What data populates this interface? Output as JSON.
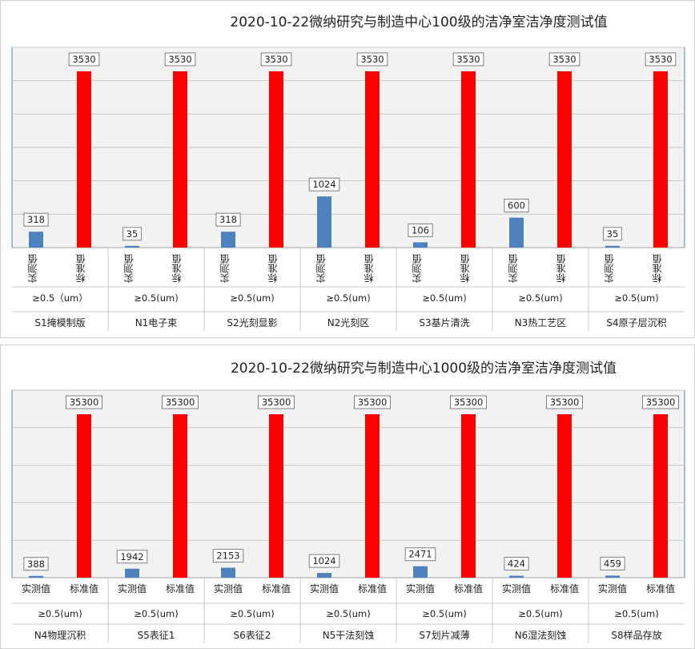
{
  "chart_data": [
    {
      "type": "bar",
      "title": "2020-10-22微纳研究与制造中心100级的洁净室洁净度测试值",
      "series_labels": [
        "实测值",
        "标准值"
      ],
      "colors": {
        "measured": "#4f81bd",
        "standard": "#ff0000"
      },
      "ylim": [
        0,
        3530
      ],
      "groups": [
        {
          "name": "S1掩模制版",
          "size_label": "≥0.5（um）",
          "measured": 318,
          "standard": 3530
        },
        {
          "name": "N1电子束",
          "size_label": "≥0.5(um)",
          "measured": 35,
          "standard": 3530
        },
        {
          "name": "S2光刻显影",
          "size_label": "≥0.5(um)",
          "measured": 318,
          "standard": 3530
        },
        {
          "name": "N2光刻区",
          "size_label": "≥0.5(um)",
          "measured": 1024,
          "standard": 3530
        },
        {
          "name": "S3基片清洗",
          "size_label": "≥0.5(um)",
          "measured": 106,
          "standard": 3530
        },
        {
          "name": "N3热工艺区",
          "size_label": "≥0.5(um)",
          "measured": 600,
          "standard": 3530
        },
        {
          "name": "S4原子层沉积",
          "size_label": "≥0.5(um)",
          "measured": 35,
          "standard": 3530
        }
      ]
    },
    {
      "type": "bar",
      "title": "2020-10-22微纳研究与制造中心1000级的洁净室洁净度测试值",
      "series_labels": [
        "实测值",
        "标准值"
      ],
      "colors": {
        "measured": "#4f81bd",
        "standard": "#ff0000"
      },
      "ylim": [
        0,
        35300
      ],
      "groups": [
        {
          "name": "N4物理沉积",
          "size_label": "≥0.5(um)",
          "measured": 388,
          "standard": 35300
        },
        {
          "name": "S5表征1",
          "size_label": "≥0.5(um)",
          "measured": 1942,
          "standard": 35300
        },
        {
          "name": "S6表征2",
          "size_label": "≥0.5(um)",
          "measured": 2153,
          "standard": 35300
        },
        {
          "name": "N5干法刻蚀",
          "size_label": "≥0.5(um)",
          "measured": 1024,
          "standard": 35300
        },
        {
          "name": "S7划片减薄",
          "size_label": "≥0.5(um)",
          "measured": 2471,
          "standard": 35300
        },
        {
          "name": "N6湿法刻蚀",
          "size_label": "≥0.5(um)",
          "measured": 424,
          "standard": 35300
        },
        {
          "name": "S8样品存放",
          "size_label": "≥0.5(um)",
          "measured": 459,
          "standard": 35300
        }
      ]
    }
  ]
}
